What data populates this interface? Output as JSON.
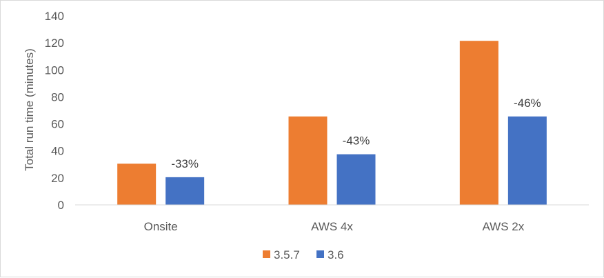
{
  "chart_data": {
    "type": "bar",
    "title": "",
    "xlabel": "",
    "ylabel": "Total run time (minutes)",
    "ylim": [
      0,
      140
    ],
    "yticks": [
      "0",
      "20",
      "40",
      "60",
      "80",
      "100",
      "120",
      "140"
    ],
    "grid": false,
    "legend": "bottom",
    "categories": [
      "Onsite",
      "AWS 4x",
      "AWS 2x"
    ],
    "series": [
      {
        "name": "3.5.7",
        "color": "#ED7D31",
        "values": [
          30.5,
          65.5,
          121.5
        ],
        "labels": [
          "",
          "",
          ""
        ]
      },
      {
        "name": "3.6",
        "color": "#4472C4",
        "values": [
          20.5,
          37.5,
          65.5
        ],
        "labels": [
          "-33%",
          "-43%",
          "-46%"
        ]
      }
    ]
  }
}
